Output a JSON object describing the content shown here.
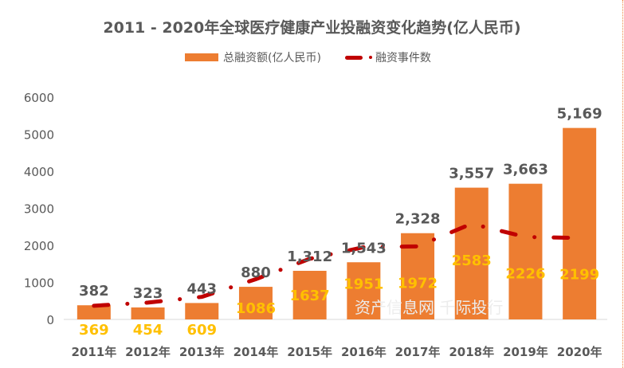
{
  "chart_data": {
    "type": "bar",
    "title": "2011 - 2020年全球医疗健康产业投融资变化趋势(亿人民币)",
    "categories": [
      "2011年",
      "2012年",
      "2013年",
      "2014年",
      "2015年",
      "2016年",
      "2017年",
      "2018年",
      "2019年",
      "2020年"
    ],
    "series": [
      {
        "name": "总融资额(亿人民币)",
        "type": "bar",
        "color": "#ED7D31",
        "values": [
          382,
          323,
          443,
          880,
          1312,
          1543,
          2328,
          3557,
          3663,
          5169
        ],
        "labels": [
          "382",
          "323",
          "443",
          "880",
          "1,312",
          "1,543",
          "2,328",
          "3,557",
          "3,663",
          "5,169"
        ]
      },
      {
        "name": "融资事件数",
        "type": "line",
        "style": "dash-dot",
        "color": "#C00000",
        "values": [
          369,
          454,
          609,
          1086,
          1637,
          1951,
          1972,
          2583,
          2226,
          2199
        ],
        "labels": [
          "369",
          "454",
          "609",
          "1086",
          "1637",
          "1951",
          "1972",
          "2583",
          "2226",
          "2199"
        ]
      }
    ],
    "yticks": [
      "0",
      "1000",
      "2000",
      "3000",
      "4000",
      "5000",
      "6000"
    ],
    "ylim": [
      0,
      6000
    ],
    "grid": false,
    "legend": "top",
    "label_colors": {
      "bar": "#595959",
      "line": "#FFC000"
    }
  },
  "watermark": "资产信息网 千际投行"
}
